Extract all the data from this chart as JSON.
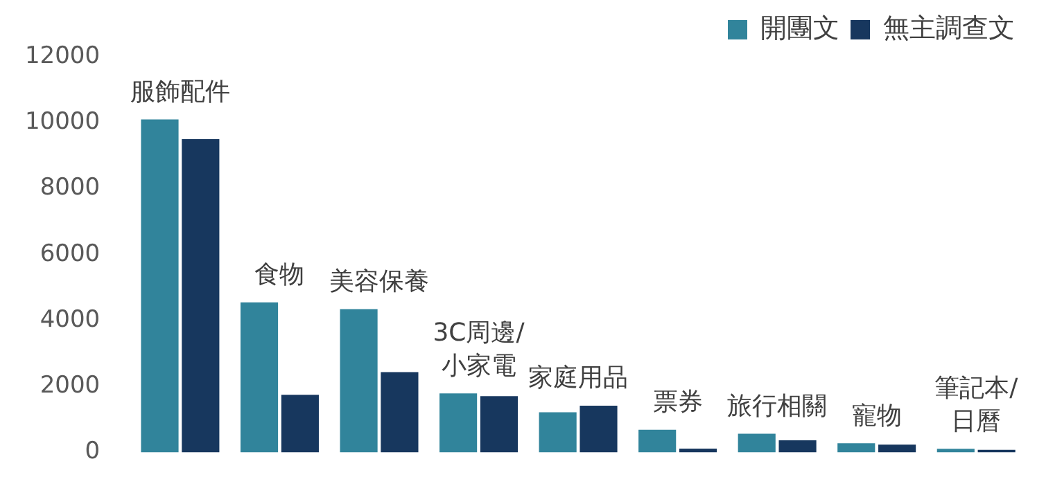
{
  "chart_data": {
    "type": "bar",
    "categories": [
      "服飾配件",
      "食物",
      "美容保養",
      "3C周邊/小家電",
      "家庭用品",
      "票券",
      "旅行相關",
      "寵物",
      "筆記本/日曆"
    ],
    "series": [
      {
        "name": "開團文",
        "color": "#31849b",
        "values": [
          10100,
          4550,
          4350,
          1790,
          1220,
          690,
          570,
          280,
          110
        ]
      },
      {
        "name": "無主調查文",
        "color": "#17375e",
        "values": [
          9500,
          1750,
          2440,
          1710,
          1420,
          120,
          370,
          240,
          80
        ]
      }
    ],
    "ylim": [
      0,
      12000
    ],
    "yticks": [
      0,
      2000,
      4000,
      6000,
      8000,
      10000,
      12000
    ],
    "grid": false,
    "legend": "top right",
    "tick_labels": "y"
  }
}
